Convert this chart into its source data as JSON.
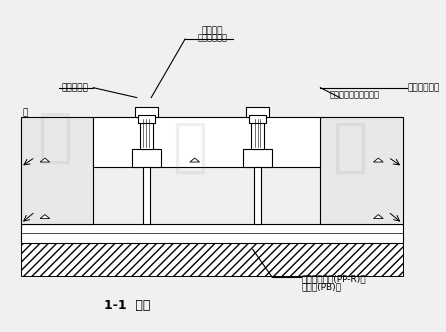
{
  "bg_color": "#f0f0f0",
  "line_color": "#000000",
  "hatch_color": "#000000",
  "title": "1-1  副面",
  "label_top": "管件管夸",
  "label_top_sub": "（鑰制管絹）",
  "label_left1": "内螺紋接頭",
  "label_left2": "箣",
  "label_right1": "弹性内夸三道",
  "label_right1_sub": "（通用圖西諷參工圖）",
  "label_bot1": "無毒熱融接管(PP-R)管",
  "label_bot2": "聚丁烯(PB)管",
  "font_size": 6.5,
  "title_font_size": 9
}
